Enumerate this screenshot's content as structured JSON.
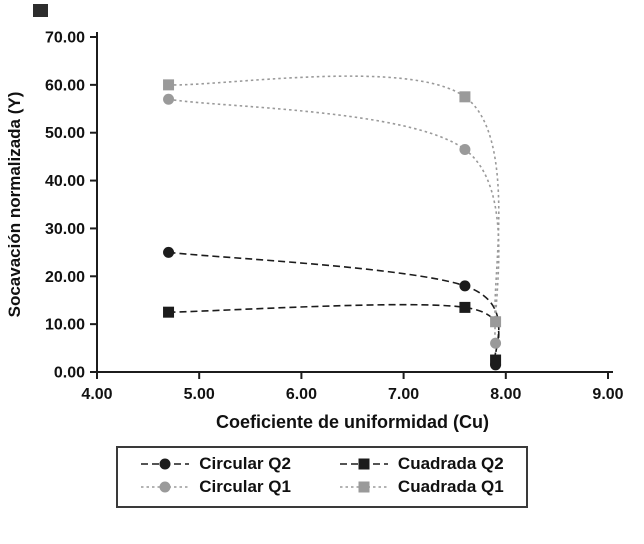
{
  "chart_data": {
    "type": "scatter",
    "title": "",
    "xlabel": "Coeficiente de uniformidad (Cu)",
    "ylabel": "Socavación normalizada (Y)",
    "xlim": [
      4.0,
      9.0
    ],
    "ylim": [
      0.0,
      70.0
    ],
    "xticks": [
      4,
      5,
      6,
      7,
      8,
      9
    ],
    "xtick_labels": [
      "4.00",
      "5.00",
      "6.00",
      "7.00",
      "8.00",
      "9.00"
    ],
    "yticks": [
      0,
      10,
      20,
      30,
      40,
      50,
      60,
      70
    ],
    "ytick_labels": [
      "0.00",
      "10.00",
      "20.00",
      "30.00",
      "40.00",
      "50.00",
      "60.00",
      "70.00"
    ],
    "grid": false,
    "legend_position": "bottom",
    "axis_color": "#1c1c1c",
    "series": [
      {
        "name": "Circular Q2",
        "color": "#1c1c1c",
        "marker": "circle",
        "line_style": "dashed",
        "points": [
          [
            4.7,
            25.0
          ],
          [
            7.6,
            18.0
          ],
          [
            7.9,
            1.5
          ]
        ]
      },
      {
        "name": "Cuadrada Q2",
        "color": "#1c1c1c",
        "marker": "square",
        "line_style": "dashed",
        "points": [
          [
            4.7,
            12.5
          ],
          [
            7.6,
            13.5
          ],
          [
            7.9,
            2.5
          ]
        ]
      },
      {
        "name": "Circular Q1",
        "color": "#9a9a9a",
        "marker": "circle",
        "line_style": "dotted",
        "points": [
          [
            4.7,
            57.0
          ],
          [
            7.6,
            46.5
          ],
          [
            7.9,
            6.0
          ]
        ]
      },
      {
        "name": "Cuadrada Q1",
        "color": "#9a9a9a",
        "marker": "square",
        "line_style": "dotted",
        "points": [
          [
            4.7,
            60.0
          ],
          [
            7.6,
            57.5
          ],
          [
            7.9,
            10.5
          ]
        ]
      }
    ]
  }
}
